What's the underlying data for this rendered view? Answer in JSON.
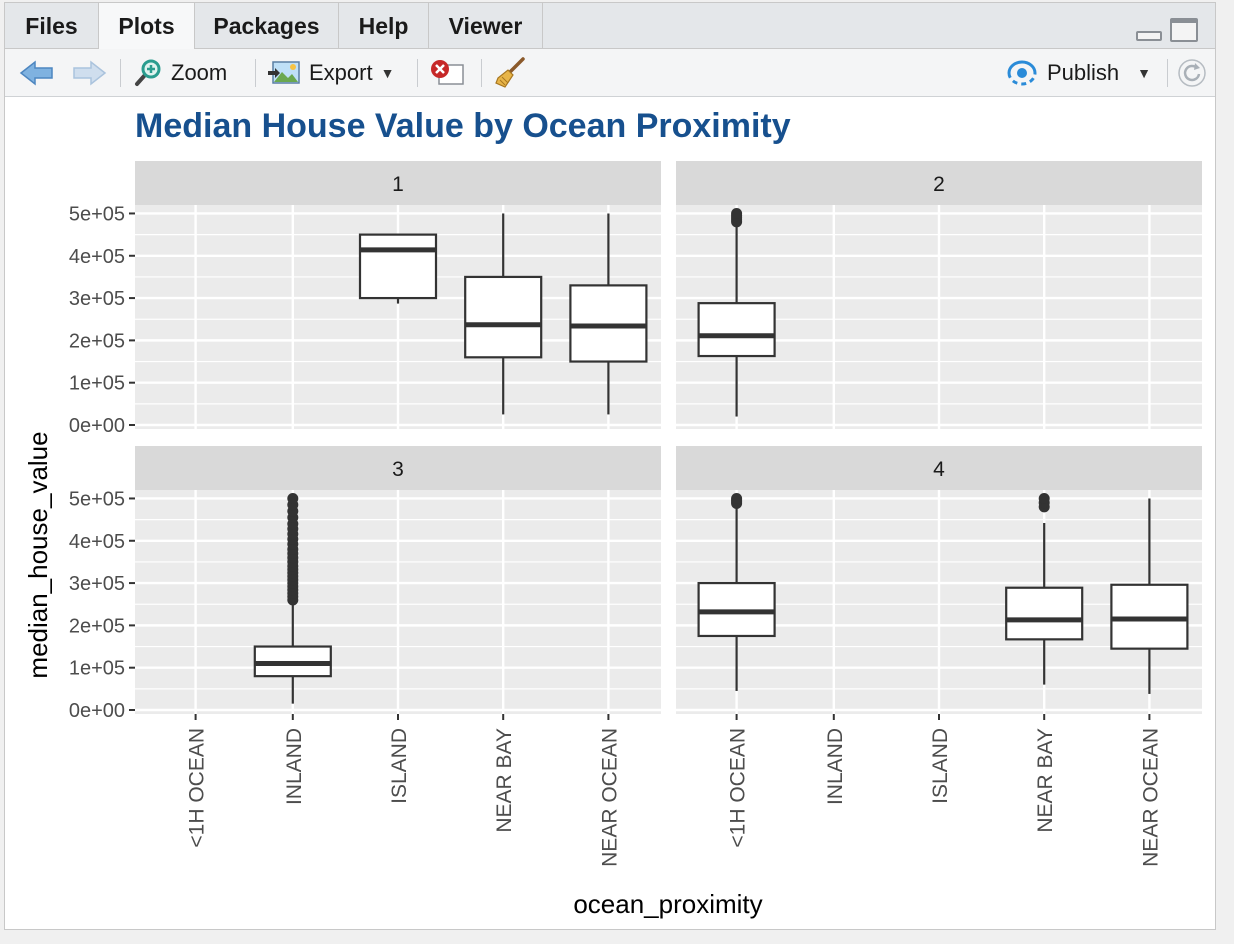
{
  "tabs": [
    {
      "label": "Files",
      "active": false
    },
    {
      "label": "Plots",
      "active": true
    },
    {
      "label": "Packages",
      "active": false
    },
    {
      "label": "Help",
      "active": false
    },
    {
      "label": "Viewer",
      "active": false
    }
  ],
  "toolbar": {
    "zoom_label": "Zoom",
    "export_label": "Export",
    "publish_label": "Publish"
  },
  "icons": {
    "back": "arrow-left-icon",
    "forward": "arrow-right-icon",
    "zoom": "magnifier-icon",
    "export": "image-export-icon",
    "remove": "remove-plot-icon",
    "clear": "broom-icon",
    "publish": "publish-icon",
    "refresh": "refresh-icon",
    "minimize": "minimize-icon",
    "maximize": "maximize-icon"
  },
  "colors": {
    "title": "#17508e",
    "panel_bg": "#ebebeb",
    "strip_bg": "#d9d9d9",
    "grid": "#ffffff",
    "box_line": "#333333",
    "publish_accent": "#2a8bd8"
  },
  "chart_data": {
    "type": "boxplot",
    "title": "Median House Value by Ocean Proximity",
    "xlabel": "ocean_proximity",
    "ylabel": "median_house_value",
    "ylim": [
      0,
      520000
    ],
    "y_ticks": [
      0,
      100000,
      200000,
      300000,
      400000,
      500000
    ],
    "y_tick_labels": [
      "0e+00",
      "1e+05",
      "2e+05",
      "3e+05",
      "4e+05",
      "5e+05"
    ],
    "categories": [
      "<1H OCEAN",
      "INLAND",
      "ISLAND",
      "NEAR BAY",
      "NEAR OCEAN"
    ],
    "grid": true,
    "facets": [
      {
        "label": "1",
        "boxes": [
          {
            "category": "ISLAND",
            "whisker_low": 287000,
            "q1": 300000,
            "median": 414000,
            "q3": 450000,
            "whisker_high": 450000,
            "outliers": []
          },
          {
            "category": "NEAR BAY",
            "whisker_low": 25000,
            "q1": 160000,
            "median": 237000,
            "q3": 350000,
            "whisker_high": 500000,
            "outliers": []
          },
          {
            "category": "NEAR OCEAN",
            "whisker_low": 25000,
            "q1": 150000,
            "median": 234000,
            "q3": 330000,
            "whisker_high": 500000,
            "outliers": []
          }
        ]
      },
      {
        "label": "2",
        "boxes": [
          {
            "category": "<1H OCEAN",
            "whisker_low": 20000,
            "q1": 163000,
            "median": 211000,
            "q3": 288000,
            "whisker_high": 475000,
            "outliers": [
              480000,
              485000,
              490000,
              495000,
              500000
            ]
          }
        ]
      },
      {
        "label": "3",
        "boxes": [
          {
            "category": "INLAND",
            "whisker_low": 15000,
            "q1": 80000,
            "median": 110000,
            "q3": 150000,
            "whisker_high": 255000,
            "outliers": [
              260000,
              268000,
              276000,
              284000,
              292000,
              300000,
              308000,
              316000,
              324000,
              332000,
              340000,
              350000,
              360000,
              370000,
              380000,
              392000,
              404000,
              416000,
              428000,
              440000,
              455000,
              470000,
              485000,
              500000
            ]
          }
        ]
      },
      {
        "label": "4",
        "boxes": [
          {
            "category": "<1H OCEAN",
            "whisker_low": 45000,
            "q1": 175000,
            "median": 232000,
            "q3": 300000,
            "whisker_high": 485000,
            "outliers": [
              488000,
              492000,
              496000,
              500000
            ]
          },
          {
            "category": "NEAR BAY",
            "whisker_low": 60000,
            "q1": 167000,
            "median": 213000,
            "q3": 289000,
            "whisker_high": 442000,
            "outliers": [
              480000,
              490000,
              500000
            ]
          },
          {
            "category": "NEAR OCEAN",
            "whisker_low": 38000,
            "q1": 145000,
            "median": 215000,
            "q3": 296000,
            "whisker_high": 500000,
            "outliers": []
          }
        ]
      }
    ]
  }
}
